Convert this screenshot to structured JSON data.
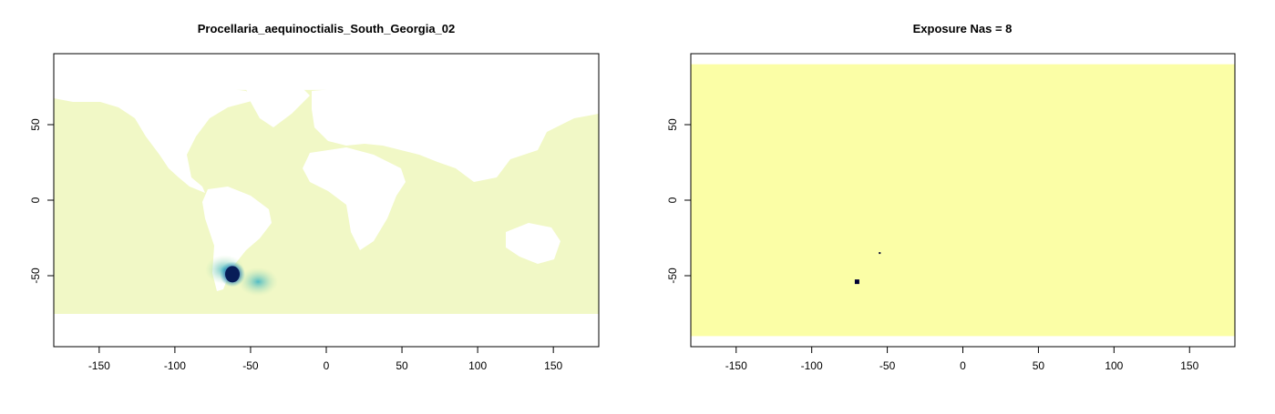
{
  "colors": {
    "ocean_left": "#f1f8c6",
    "land": "#ffffff",
    "fill_right": "#fbfea6",
    "axis": "#000000",
    "density_low": "#7fcdbb",
    "density_mid": "#2c7fb8",
    "density_high": "#081d58",
    "exposure_mark": "#000033"
  },
  "chart_data": [
    {
      "type": "heatmap",
      "title": "Procellaria_aequinoctialis_South_Georgia_02",
      "xlabel": "",
      "ylabel": "",
      "xlim": [
        -180,
        180
      ],
      "ylim": [
        -97,
        97
      ],
      "x_ticks": [
        -150,
        -100,
        -50,
        0,
        50,
        100,
        150
      ],
      "y_ticks": [
        -50,
        0,
        50
      ],
      "grid": false,
      "value_extent_lat": [
        -76,
        73
      ],
      "hotspots": [
        {
          "lon": -67,
          "lat": -46,
          "level": "low"
        },
        {
          "lon": -45,
          "lat": -54,
          "level": "low"
        },
        {
          "lon": -62,
          "lat": -49,
          "level": "mid"
        },
        {
          "lon": -62,
          "lat": -49,
          "level": "high"
        }
      ]
    },
    {
      "type": "heatmap",
      "title": "Exposure Nas = 8",
      "xlabel": "",
      "ylabel": "",
      "xlim": [
        -180,
        180
      ],
      "ylim": [
        -97,
        97
      ],
      "x_ticks": [
        -150,
        -100,
        -50,
        0,
        50,
        100,
        150
      ],
      "y_ticks": [
        -50,
        0,
        50
      ],
      "grid": false,
      "value_extent_lat": [
        -90,
        90
      ],
      "na_cells": [
        {
          "lon": -70,
          "lat": -54
        },
        {
          "lon": -55,
          "lat": -35
        }
      ]
    }
  ]
}
